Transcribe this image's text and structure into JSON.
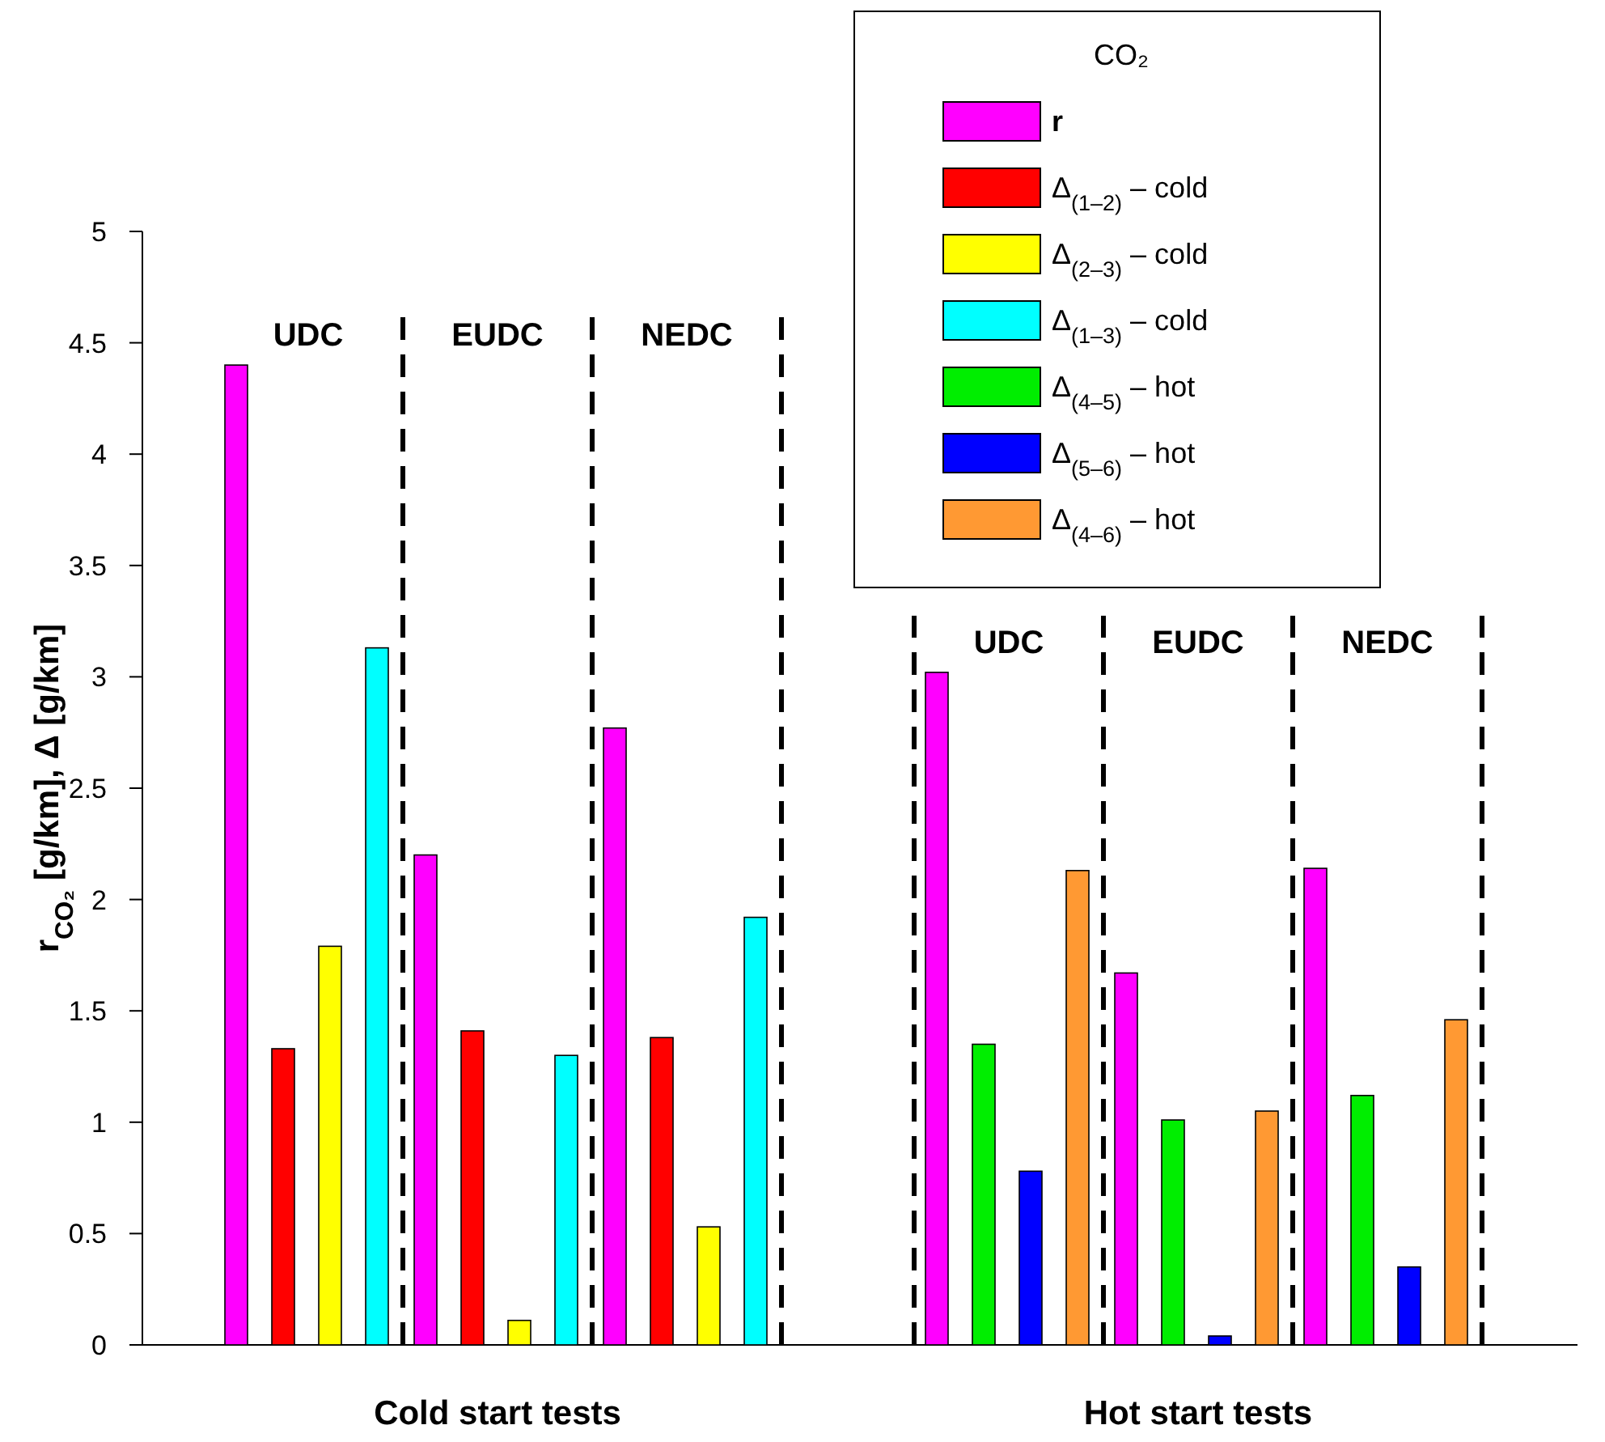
{
  "chart_data": [
    {
      "type": "bar",
      "ylabel": "r$_{CO₂}$  [g/km], Δ [g/km]",
      "xlabel": "Cold start tests",
      "legend_title": "CO₂",
      "legend": "top right",
      "categories": [
        "UDC",
        "EUDC",
        "NEDC"
      ],
      "ylim": [
        0,
        5
      ],
      "yticks": [
        0,
        0.5,
        1,
        1.5,
        2,
        2.5,
        3,
        3.5,
        4,
        4.5,
        5
      ],
      "series": [
        {
          "name": "r",
          "color": "#ff00ff",
          "values": [
            4.4,
            2.2,
            2.77
          ]
        },
        {
          "name": "Δ$_{(1–2)}$ – cold",
          "color": "#ff0000",
          "values": [
            1.33,
            1.41,
            1.38
          ]
        },
        {
          "name": "Δ$_{(2–3)}$ – cold",
          "color": "#ffff00",
          "values": [
            1.79,
            0.11,
            0.53
          ]
        },
        {
          "name": "Δ$_{(1–3)}$ – cold",
          "color": "#00ffff",
          "values": [
            3.13,
            1.3,
            1.92
          ]
        }
      ]
    },
    {
      "type": "bar",
      "xlabel": "Hot start tests",
      "legend": "top left",
      "tick_labels": "x",
      "categories": [
        "UDC",
        "EUDC",
        "NEDC"
      ],
      "ylim": [
        0,
        5
      ],
      "series": [
        {
          "color": "#ff00ff",
          "values": [
            3.02,
            1.67,
            2.14
          ]
        },
        {
          "name": "Δ$_{(4–5)}$ – hot",
          "color": "#00ee00",
          "values": [
            1.35,
            1.01,
            1.12
          ]
        },
        {
          "name": "Δ$_{(5–6)}$ – hot",
          "color": "#0000ff",
          "values": [
            0.78,
            0.04,
            0.35
          ]
        },
        {
          "name": "Δ$_{(4–6)}$ – hot",
          "color": "#ff9933",
          "values": [
            2.13,
            1.05,
            1.46
          ]
        }
      ]
    }
  ]
}
